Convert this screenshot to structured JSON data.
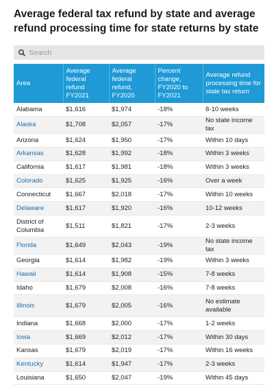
{
  "title": "Average federal tax refund by state and average refund processing time for state returns by state",
  "search": {
    "placeholder": "Search",
    "icon": "search-icon"
  },
  "columns": [
    "Area",
    "Average federal refund FY2021",
    "Average federal refund, FY2020",
    "Percent change, FY2020 to FY2021",
    "Average refund processing time for state tax return"
  ],
  "rows": [
    [
      "Alabama",
      "$1,616",
      "$1,974",
      "-18%",
      "8-10 weeks"
    ],
    [
      "Alaska",
      "$1,708",
      "$2,057",
      "-17%",
      "No state income tax"
    ],
    [
      "Arizona",
      "$1,624",
      "$1,950",
      "-17%",
      "Within 10 days"
    ],
    [
      "Arkansas",
      "$1,628",
      "$1,992",
      "-18%",
      "Within 3 weeks"
    ],
    [
      "California",
      "$1,617",
      "$1,981",
      "-18%",
      "Within 3 weeks"
    ],
    [
      "Colorado",
      "$1,625",
      "$1,925",
      "-16%",
      "Over a week"
    ],
    [
      "Connecticut",
      "$1,667",
      "$2,018",
      "-17%",
      "Within 10 weeks"
    ],
    [
      "Delaware",
      "$1,617",
      "$1,920",
      "-16%",
      "10-12 weeks"
    ],
    [
      "District of Columbia",
      "$1,511",
      "$1,821",
      "-17%",
      "2-3 weeks"
    ],
    [
      "Florida",
      "$1,649",
      "$2,043",
      "-19%",
      "No state income tax"
    ],
    [
      "Georgia",
      "$1,614",
      "$1,982",
      "-19%",
      "Within 3 weeks"
    ],
    [
      "Hawaii",
      "$1,614",
      "$1,908",
      "-15%",
      "7-8 weeks"
    ],
    [
      "Idaho",
      "$1,679",
      "$2,008",
      "-16%",
      "7-8 weeks"
    ],
    [
      "Illinois",
      "$1,679",
      "$2,005",
      "-16%",
      "No estimate available"
    ],
    [
      "Indiana",
      "$1,668",
      "$2,000",
      "-17%",
      "1-2 weeks"
    ],
    [
      "Iowa",
      "$1,669",
      "$2,012",
      "-17%",
      "Within 30 days"
    ],
    [
      "Kansas",
      "$1,679",
      "$2,019",
      "-17%",
      "Within 16 weeks"
    ],
    [
      "Kentucky",
      "$1,614",
      "$1,947",
      "-17%",
      "2-3 weeks"
    ],
    [
      "Louisiana",
      "$1,650",
      "$2,047",
      "-19%",
      "Within 45 days"
    ]
  ]
}
